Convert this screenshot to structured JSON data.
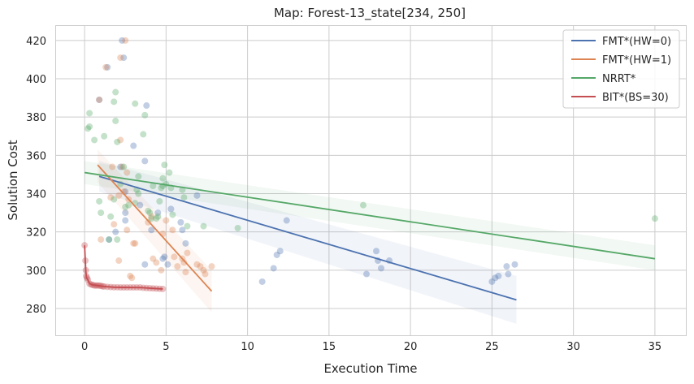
{
  "chart_data": {
    "type": "scatter",
    "title": "Map: Forest-13_state[234, 250]",
    "xlabel": "Execution Time",
    "ylabel": "Solution Cost",
    "xlim": [
      -1.8,
      36.9
    ],
    "ylim": [
      266,
      428
    ],
    "xticks": [
      0,
      5,
      10,
      15,
      20,
      25,
      30,
      35
    ],
    "yticks": [
      280,
      300,
      320,
      340,
      360,
      380,
      400,
      420
    ],
    "grid": true,
    "legend_position": "top-right",
    "series": [
      {
        "name": "FMT*(HW=0)",
        "color": "#4c72b0",
        "points": [
          [
            2.3,
            420
          ],
          [
            2.4,
            411
          ],
          [
            1.4,
            406
          ],
          [
            0.9,
            389
          ],
          [
            3.8,
            386
          ],
          [
            3.7,
            357
          ],
          [
            3.0,
            365
          ],
          [
            2.2,
            354
          ],
          [
            2.5,
            330
          ],
          [
            2.5,
            326
          ],
          [
            2.5,
            341
          ],
          [
            3.4,
            334
          ],
          [
            3.7,
            303
          ],
          [
            4.1,
            321
          ],
          [
            4.5,
            330
          ],
          [
            4.8,
            306
          ],
          [
            4.9,
            307
          ],
          [
            5.1,
            303
          ],
          [
            5.3,
            332
          ],
          [
            5.9,
            325
          ],
          [
            6.0,
            321
          ],
          [
            6.2,
            314
          ],
          [
            6.9,
            339
          ],
          [
            10.9,
            294
          ],
          [
            11.6,
            301
          ],
          [
            11.8,
            308
          ],
          [
            12.0,
            310
          ],
          [
            12.4,
            326
          ],
          [
            17.3,
            298
          ],
          [
            17.9,
            310
          ],
          [
            18.0,
            305
          ],
          [
            18.2,
            301
          ],
          [
            18.7,
            305
          ],
          [
            25.0,
            294
          ],
          [
            25.2,
            296
          ],
          [
            25.4,
            297
          ],
          [
            25.9,
            302
          ],
          [
            26.0,
            298
          ],
          [
            26.4,
            303
          ],
          [
            1.5,
            316
          ],
          [
            1.9,
            320
          ]
        ],
        "fit": {
          "x": [
            0.9,
            26.5
          ],
          "y": [
            349,
            284.5
          ]
        },
        "band_upper": [
          [
            0.9,
            357
          ],
          [
            26.5,
            297
          ]
        ],
        "band_lower": [
          [
            0.9,
            341
          ],
          [
            26.5,
            272
          ]
        ]
      },
      {
        "name": "FMT*(HW=1)",
        "color": "#dd8452",
        "points": [
          [
            2.5,
            420
          ],
          [
            2.2,
            411
          ],
          [
            1.3,
            406
          ],
          [
            0.9,
            389
          ],
          [
            2.2,
            368
          ],
          [
            1.7,
            354
          ],
          [
            2.3,
            354
          ],
          [
            2.6,
            351
          ],
          [
            2.1,
            339
          ],
          [
            2.4,
            341
          ],
          [
            1.6,
            338
          ],
          [
            2.7,
            337
          ],
          [
            1.0,
            316
          ],
          [
            1.8,
            324
          ],
          [
            2.6,
            321
          ],
          [
            2.1,
            305
          ],
          [
            2.8,
            297
          ],
          [
            2.9,
            296
          ],
          [
            3.0,
            314
          ],
          [
            3.1,
            314
          ],
          [
            3.9,
            325
          ],
          [
            4.1,
            328
          ],
          [
            4.2,
            306
          ],
          [
            4.4,
            304
          ],
          [
            4.7,
            300
          ],
          [
            4.8,
            319
          ],
          [
            5.0,
            326
          ],
          [
            5.4,
            321
          ],
          [
            5.5,
            307
          ],
          [
            5.7,
            302
          ],
          [
            6.0,
            306
          ],
          [
            6.1,
            304
          ],
          [
            6.3,
            309
          ],
          [
            6.2,
            299
          ],
          [
            6.9,
            303
          ],
          [
            7.1,
            302
          ],
          [
            7.3,
            300
          ],
          [
            7.4,
            298
          ],
          [
            7.8,
            302
          ]
        ],
        "fit": {
          "x": [
            0.8,
            7.8
          ],
          "y": [
            355,
            289
          ]
        },
        "band_upper": [
          [
            0.8,
            363
          ],
          [
            7.8,
            300
          ]
        ],
        "band_lower": [
          [
            0.8,
            346
          ],
          [
            7.8,
            278
          ]
        ]
      },
      {
        "name": "NRRT*",
        "color": "#55a868",
        "points": [
          [
            0.3,
            382
          ],
          [
            0.2,
            374
          ],
          [
            0.3,
            375
          ],
          [
            0.6,
            368
          ],
          [
            1.2,
            370
          ],
          [
            1.9,
            393
          ],
          [
            1.8,
            388
          ],
          [
            1.9,
            378
          ],
          [
            2.0,
            367
          ],
          [
            2.4,
            354
          ],
          [
            3.1,
            387
          ],
          [
            3.6,
            371
          ],
          [
            3.7,
            381
          ],
          [
            3.3,
            349
          ],
          [
            0.9,
            336
          ],
          [
            1.0,
            330
          ],
          [
            1.8,
            337
          ],
          [
            2.2,
            345
          ],
          [
            2.5,
            333
          ],
          [
            2.7,
            334
          ],
          [
            3.1,
            335
          ],
          [
            3.2,
            342
          ],
          [
            3.3,
            340
          ],
          [
            3.9,
            331
          ],
          [
            4.0,
            330
          ],
          [
            4.1,
            327
          ],
          [
            4.2,
            344
          ],
          [
            4.4,
            327
          ],
          [
            4.5,
            328
          ],
          [
            4.6,
            336
          ],
          [
            4.7,
            343
          ],
          [
            4.8,
            348
          ],
          [
            4.8,
            344
          ],
          [
            4.9,
            355
          ],
          [
            5.0,
            345
          ],
          [
            5.2,
            351
          ],
          [
            5.3,
            343
          ],
          [
            5.4,
            329
          ],
          [
            6.0,
            342
          ],
          [
            6.1,
            338
          ],
          [
            6.3,
            323
          ],
          [
            7.3,
            323
          ],
          [
            9.4,
            322
          ],
          [
            17.1,
            334
          ],
          [
            35.0,
            327
          ],
          [
            2.0,
            316
          ],
          [
            1.6,
            328
          ],
          [
            1.5,
            316
          ]
        ],
        "fit": {
          "x": [
            0,
            35
          ],
          "y": [
            351,
            306
          ]
        },
        "band_upper": [
          [
            0,
            357
          ],
          [
            35,
            313
          ]
        ],
        "band_lower": [
          [
            0,
            345
          ],
          [
            35,
            300
          ]
        ]
      },
      {
        "name": "BIT*(BS=30)",
        "color": "#c44e52",
        "points": [
          [
            0.0,
            313
          ],
          [
            0.05,
            305
          ],
          [
            0.08,
            300
          ],
          [
            0.1,
            297
          ],
          [
            0.15,
            296
          ],
          [
            0.2,
            295
          ],
          [
            0.3,
            293
          ],
          [
            0.4,
            292.5
          ],
          [
            0.5,
            292.3
          ],
          [
            0.6,
            292
          ],
          [
            0.7,
            292
          ],
          [
            0.8,
            292
          ],
          [
            0.9,
            292
          ],
          [
            1.0,
            291.8
          ],
          [
            1.1,
            291.6
          ],
          [
            1.2,
            291.5
          ],
          [
            1.4,
            291.3
          ],
          [
            1.6,
            291.2
          ],
          [
            1.8,
            291.1
          ],
          [
            2.0,
            291.1
          ],
          [
            2.2,
            291
          ],
          [
            2.4,
            291
          ],
          [
            2.6,
            291
          ],
          [
            2.8,
            291
          ],
          [
            3.0,
            291
          ],
          [
            3.2,
            291
          ],
          [
            3.4,
            291
          ],
          [
            3.6,
            290.8
          ],
          [
            3.8,
            290.7
          ],
          [
            4.0,
            290.6
          ],
          [
            4.2,
            290.5
          ],
          [
            4.4,
            290.4
          ],
          [
            4.6,
            290.3
          ],
          [
            4.8,
            290.2
          ]
        ],
        "line": [
          [
            0.0,
            313
          ],
          [
            0.05,
            304
          ],
          [
            0.08,
            299
          ],
          [
            0.12,
            296
          ],
          [
            0.2,
            295
          ],
          [
            0.3,
            293
          ],
          [
            0.5,
            292.3
          ],
          [
            0.8,
            292
          ],
          [
            1.2,
            291.5
          ],
          [
            1.8,
            291.1
          ],
          [
            2.5,
            291
          ],
          [
            3.5,
            290.9
          ],
          [
            4.0,
            290.6
          ],
          [
            4.8,
            290.2
          ]
        ]
      }
    ]
  }
}
